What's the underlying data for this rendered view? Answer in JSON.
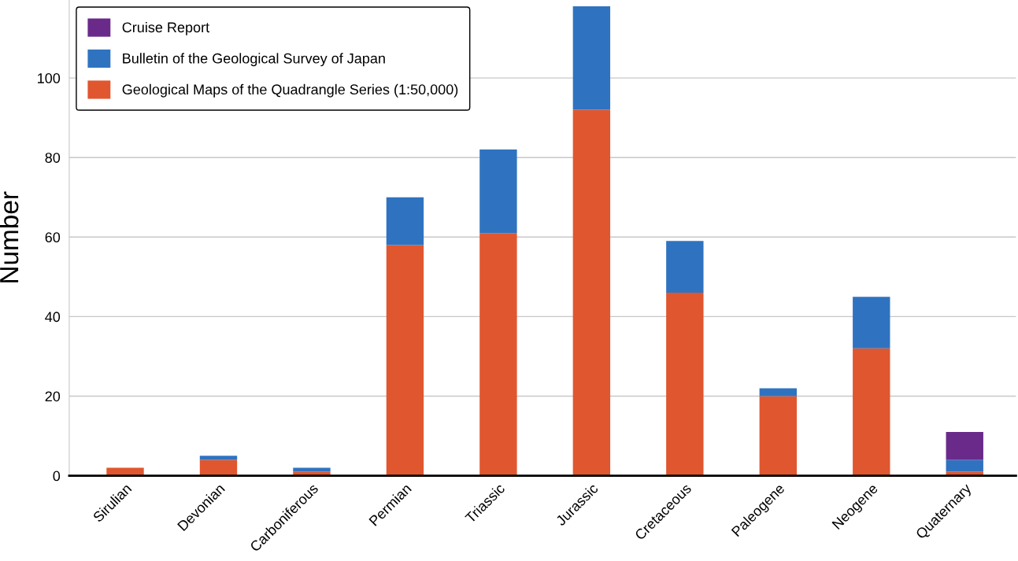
{
  "chart_data": {
    "type": "bar",
    "stacked": true,
    "ylabel": "Number",
    "categories": [
      "Sirulian",
      "Devonian",
      "Carboniferous",
      "Permian",
      "Triassic",
      "Jurassic",
      "Cretaceous",
      "Paleogene",
      "Neogene",
      "Quaternary"
    ],
    "series": [
      {
        "name": "Geological Maps of the Quadrangle Series (1:50,000)",
        "color": "#e0562f",
        "values": [
          2,
          4,
          1,
          58,
          61,
          92,
          46,
          20,
          32,
          1
        ]
      },
      {
        "name": "Bulletin of the Geological Survey of Japan",
        "color": "#2f73c0",
        "values": [
          0,
          1,
          1,
          12,
          21,
          26,
          13,
          2,
          13,
          3
        ]
      },
      {
        "name": "Cruise Report",
        "color": "#6a2a8a",
        "values": [
          0,
          0,
          0,
          0,
          0,
          0,
          0,
          0,
          0,
          7
        ]
      }
    ],
    "ylim": [
      0,
      119.6
    ],
    "yticks": [
      0,
      20,
      40,
      60,
      80,
      100
    ],
    "grid": "y",
    "legend": "top left"
  }
}
